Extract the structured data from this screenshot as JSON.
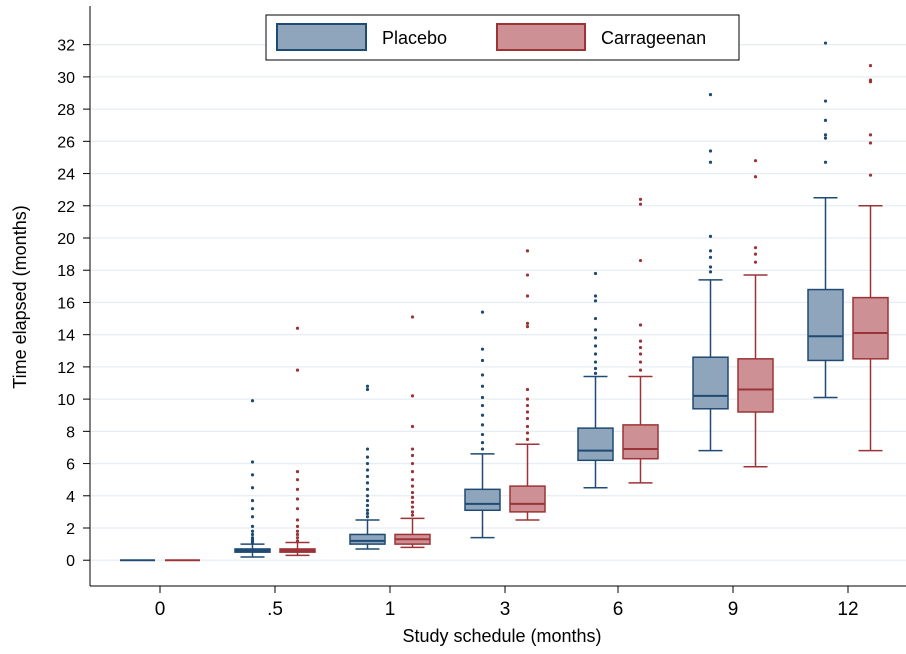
{
  "colors": {
    "placebo_fill": "#8fa5bc",
    "placebo_stroke": "#1f4a73",
    "carrageenan_fill": "#cd9095",
    "carrageenan_stroke": "#9c3336",
    "grid": "#e6eef3"
  },
  "chart_data": {
    "type": "box",
    "xlabel": "Study schedule (months)",
    "ylabel": "Time elapsed (months)",
    "ylim": [
      -1.6,
      34.4
    ],
    "yticks": [
      0,
      2,
      4,
      6,
      8,
      10,
      12,
      14,
      16,
      18,
      20,
      22,
      24,
      26,
      28,
      30,
      32
    ],
    "grid": true,
    "legend_position": "top-center",
    "categories": [
      "0",
      ".5",
      "1",
      "3",
      "6",
      "9",
      "12"
    ],
    "series": [
      {
        "name": "Placebo",
        "boxes": [
          {
            "min": 0,
            "q1": 0,
            "median": 0,
            "q3": 0,
            "max": 0,
            "outliers": []
          },
          {
            "min": 0.2,
            "q1": 0.5,
            "median": 0.6,
            "q3": 0.7,
            "max": 1.0,
            "outliers": [
              1.1,
              1.2,
              1.3,
              1.4,
              1.6,
              1.8,
              2.1,
              2.7,
              3.2,
              3.7,
              4.5,
              5.3,
              6.1,
              9.9
            ]
          },
          {
            "min": 0.7,
            "q1": 1.0,
            "median": 1.2,
            "q3": 1.6,
            "max": 2.5,
            "outliers": [
              2.7,
              2.9,
              3.1,
              3.4,
              3.7,
              4.0,
              4.4,
              4.8,
              5.2,
              5.6,
              6.0,
              6.4,
              6.9,
              10.6,
              10.8
            ]
          },
          {
            "min": 1.4,
            "q1": 3.1,
            "median": 3.5,
            "q3": 4.4,
            "max": 6.6,
            "outliers": [
              6.9,
              7.3,
              7.8,
              8.4,
              9.0,
              9.6,
              10.1,
              10.8,
              11.5,
              12.4,
              13.1,
              15.4
            ]
          },
          {
            "min": 4.5,
            "q1": 6.2,
            "median": 6.8,
            "q3": 8.2,
            "max": 11.4,
            "outliers": [
              11.6,
              11.9,
              12.3,
              12.8,
              13.3,
              13.8,
              14.3,
              15.0,
              16.1,
              16.4,
              17.8
            ]
          },
          {
            "min": 6.8,
            "q1": 9.4,
            "median": 10.2,
            "q3": 12.6,
            "max": 17.4,
            "outliers": [
              17.9,
              18.2,
              18.8,
              19.2,
              20.1,
              24.7,
              25.4,
              28.9
            ]
          },
          {
            "min": 10.1,
            "q1": 12.4,
            "median": 13.9,
            "q3": 16.8,
            "max": 22.5,
            "outliers": [
              24.7,
              26.2,
              26.4,
              27.3,
              28.5,
              32.1
            ]
          }
        ]
      },
      {
        "name": "Carrageenan",
        "boxes": [
          {
            "min": 0,
            "q1": 0,
            "median": 0,
            "q3": 0,
            "max": 0,
            "outliers": []
          },
          {
            "min": 0.3,
            "q1": 0.5,
            "median": 0.6,
            "q3": 0.7,
            "max": 1.1,
            "outliers": [
              1.2,
              1.4,
              1.6,
              1.8,
              2.1,
              2.5,
              3.2,
              3.8,
              4.4,
              5.0,
              5.5,
              11.8,
              14.4
            ]
          },
          {
            "min": 0.8,
            "q1": 1.0,
            "median": 1.3,
            "q3": 1.6,
            "max": 2.6,
            "outliers": [
              2.8,
              3.0,
              3.3,
              3.6,
              3.9,
              4.2,
              4.6,
              5.0,
              5.5,
              6.0,
              6.5,
              6.9,
              8.3,
              10.2,
              15.1
            ]
          },
          {
            "min": 2.5,
            "q1": 3.0,
            "median": 3.5,
            "q3": 4.6,
            "max": 7.2,
            "outliers": [
              7.5,
              7.9,
              8.3,
              8.8,
              9.2,
              9.6,
              10.0,
              10.6,
              14.5,
              14.7,
              16.4,
              17.7,
              19.2
            ]
          },
          {
            "min": 4.8,
            "q1": 6.3,
            "median": 6.9,
            "q3": 8.4,
            "max": 11.4,
            "outliers": [
              11.8,
              12.3,
              12.8,
              13.2,
              13.6,
              14.6,
              18.6,
              22.1,
              22.4
            ]
          },
          {
            "min": 5.8,
            "q1": 9.2,
            "median": 10.6,
            "q3": 12.5,
            "max": 17.7,
            "outliers": [
              18.5,
              19.0,
              19.4,
              23.8,
              24.8
            ]
          },
          {
            "min": 6.8,
            "q1": 12.5,
            "median": 14.1,
            "q3": 16.3,
            "max": 22.0,
            "outliers": [
              23.9,
              25.9,
              26.4,
              29.7,
              29.8,
              30.7
            ]
          }
        ]
      }
    ]
  }
}
